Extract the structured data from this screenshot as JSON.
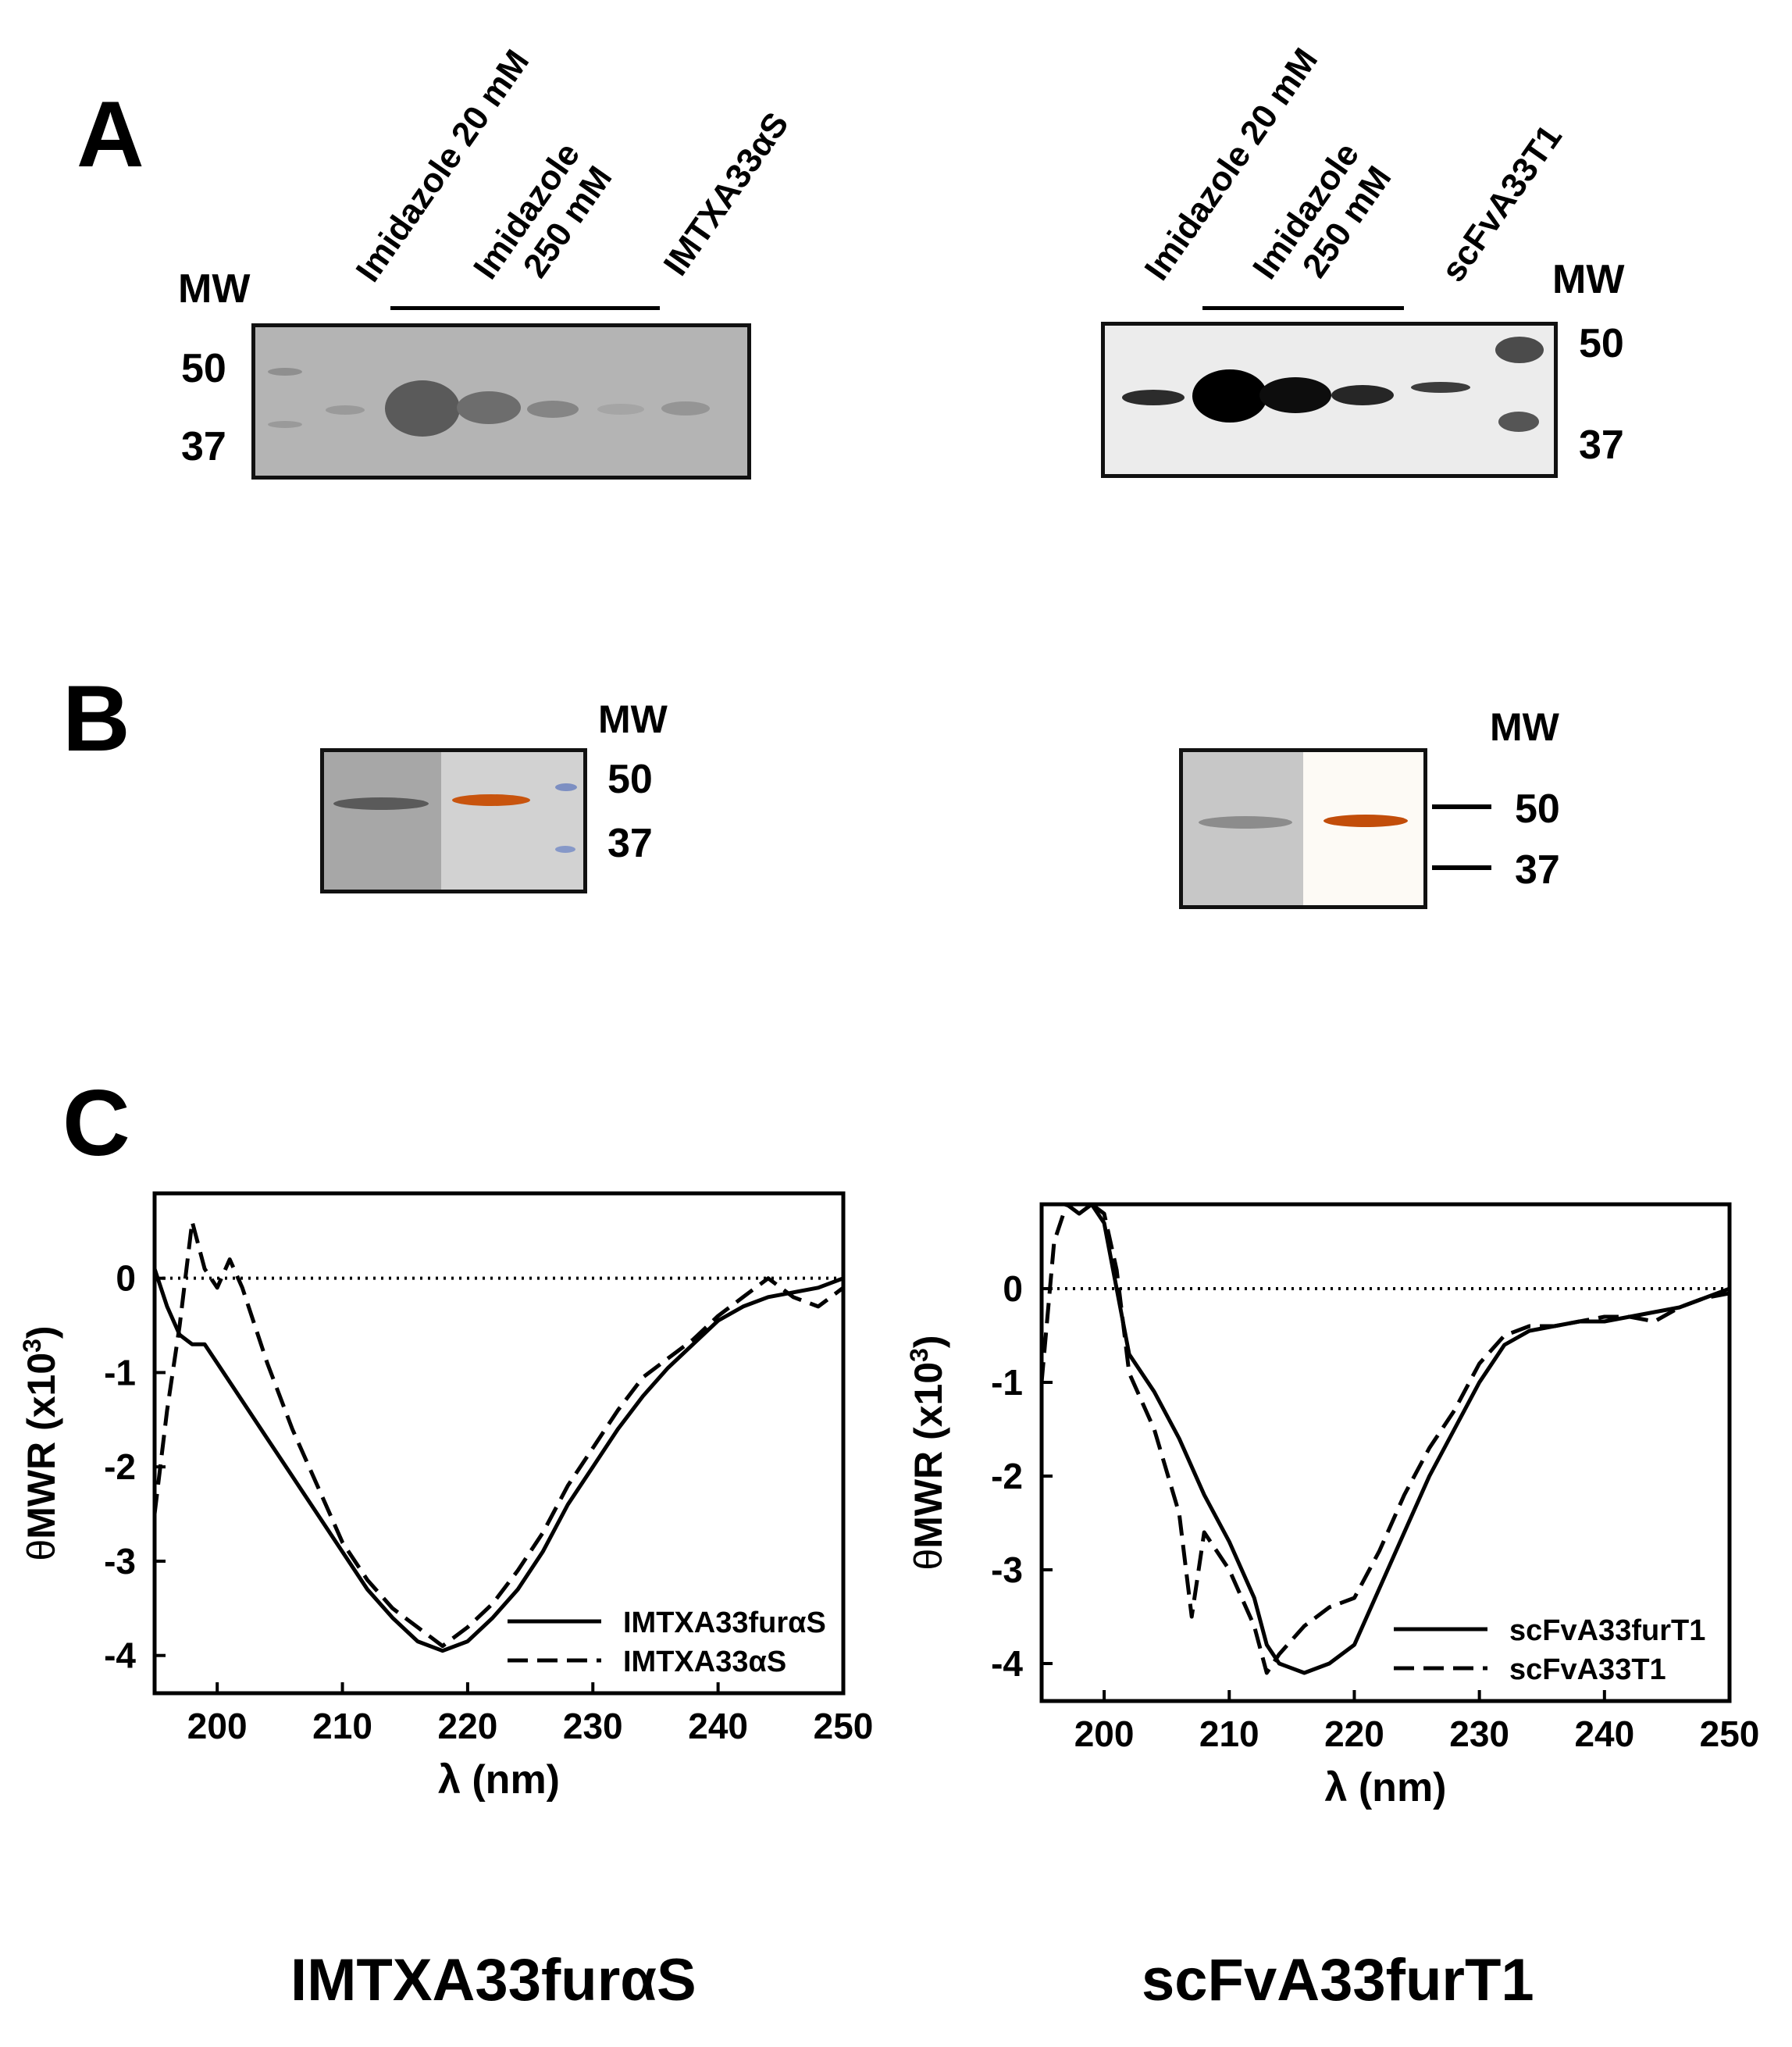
{
  "panel_a": {
    "letter": "A",
    "left_gel": {
      "mw_header": "MW",
      "lane_label_1": "Imidazole 20 mM",
      "lane_label_2_line1": "Imidazole",
      "lane_label_2_line2": "250 mM",
      "lane_label_3": "IMTXA33αS",
      "marker_50": "50",
      "marker_37": "37"
    },
    "right_gel": {
      "mw_header": "MW",
      "lane_label_1": "Imidazole 20 mM",
      "lane_label_2_line1": "Imidazole",
      "lane_label_2_line2": "250 mM",
      "lane_label_3": "scFvA33T1",
      "marker_50": "50",
      "marker_37": "37"
    }
  },
  "panel_b": {
    "letter": "B",
    "left_blot": {
      "mw_header": "MW",
      "marker_50": "50",
      "marker_37": "37"
    },
    "right_blot": {
      "mw_header": "MW",
      "marker_50": "50",
      "marker_37": "37"
    }
  },
  "panel_c": {
    "letter": "C"
  },
  "chart_data": [
    {
      "type": "line",
      "title": "",
      "xlabel": "λ (nm)",
      "ylabel": "θMWR (x10³)",
      "ylabel_main": "θ",
      "ylabel_rest": "MWR (x10",
      "ylabel_exp": "3",
      "ylabel_close": ")",
      "xlim": [
        195,
        250
      ],
      "ylim": [
        -4.4,
        0.9
      ],
      "xticks": [
        200,
        210,
        220,
        230,
        240,
        250
      ],
      "yticks": [
        0,
        -1,
        -2,
        -3,
        -4
      ],
      "xtick_labels": [
        "200",
        "210",
        "220",
        "230",
        "240",
        "250"
      ],
      "ytick_labels": [
        "0",
        "-1",
        "-2",
        "-3",
        "-4"
      ],
      "zero_line": "dotted",
      "legend_position": "bottom-right",
      "series": [
        {
          "name": "IMTXA33furαS",
          "style": "solid",
          "x": [
            195,
            196,
            197,
            198,
            199,
            200,
            202,
            204,
            206,
            208,
            210,
            212,
            214,
            216,
            218,
            220,
            222,
            224,
            226,
            228,
            230,
            232,
            234,
            236,
            238,
            240,
            242,
            244,
            246,
            248,
            250
          ],
          "y": [
            0.1,
            -0.3,
            -0.6,
            -0.7,
            -0.7,
            -0.9,
            -1.3,
            -1.7,
            -2.1,
            -2.5,
            -2.9,
            -3.3,
            -3.6,
            -3.85,
            -3.95,
            -3.85,
            -3.6,
            -3.3,
            -2.9,
            -2.4,
            -2.0,
            -1.6,
            -1.25,
            -0.95,
            -0.7,
            -0.45,
            -0.3,
            -0.2,
            -0.15,
            -0.1,
            0.0
          ]
        },
        {
          "name": "IMTXA33αS",
          "style": "dashed",
          "x": [
            195,
            196,
            197,
            198,
            199,
            200,
            201,
            202,
            204,
            206,
            208,
            210,
            212,
            214,
            216,
            218,
            220,
            222,
            224,
            226,
            228,
            230,
            232,
            234,
            236,
            238,
            240,
            242,
            244,
            246,
            248,
            250
          ],
          "y": [
            -2.5,
            -1.4,
            -0.5,
            0.6,
            0.1,
            -0.1,
            0.2,
            -0.1,
            -0.9,
            -1.6,
            -2.2,
            -2.8,
            -3.2,
            -3.5,
            -3.7,
            -3.9,
            -3.7,
            -3.45,
            -3.1,
            -2.7,
            -2.2,
            -1.8,
            -1.4,
            -1.05,
            -0.85,
            -0.65,
            -0.4,
            -0.2,
            0.0,
            -0.2,
            -0.3,
            -0.1
          ]
        }
      ]
    },
    {
      "type": "line",
      "title": "",
      "xlabel": "λ (nm)",
      "ylabel": "θMWR (x10³)",
      "ylabel_main": "θ",
      "ylabel_rest": "MWR (x10",
      "ylabel_exp": "3",
      "ylabel_close": ")",
      "xlim": [
        195,
        250
      ],
      "ylim": [
        -4.4,
        0.9
      ],
      "xticks": [
        200,
        210,
        220,
        230,
        240,
        250
      ],
      "yticks": [
        0,
        -1,
        -2,
        -3,
        -4
      ],
      "xtick_labels": [
        "200",
        "210",
        "220",
        "230",
        "240",
        "250"
      ],
      "ytick_labels": [
        "0",
        "-1",
        "-2",
        "-3",
        "-4"
      ],
      "zero_line": "dotted",
      "legend_position": "bottom-right",
      "series": [
        {
          "name": "scFvA33furT1",
          "style": "solid",
          "x": [
            196,
            197,
            198,
            199,
            200,
            201,
            202,
            204,
            206,
            208,
            210,
            212,
            213,
            214,
            216,
            218,
            220,
            222,
            224,
            226,
            228,
            230,
            232,
            234,
            236,
            238,
            240,
            242,
            244,
            246,
            248,
            250
          ],
          "y": [
            0.9,
            0.9,
            0.8,
            0.9,
            0.7,
            0.0,
            -0.7,
            -1.1,
            -1.6,
            -2.2,
            -2.7,
            -3.3,
            -3.8,
            -4.0,
            -4.1,
            -4.0,
            -3.8,
            -3.2,
            -2.6,
            -2.0,
            -1.5,
            -1.0,
            -0.6,
            -0.45,
            -0.4,
            -0.35,
            -0.35,
            -0.3,
            -0.25,
            -0.2,
            -0.1,
            0.0
          ]
        },
        {
          "name": "scFvA33T1",
          "style": "dashed",
          "x": [
            195,
            196,
            197,
            198,
            199,
            200,
            201,
            202,
            204,
            206,
            207,
            208,
            210,
            212,
            213,
            214,
            216,
            218,
            220,
            222,
            224,
            226,
            228,
            230,
            232,
            234,
            236,
            238,
            240,
            242,
            244,
            246,
            248,
            250
          ],
          "y": [
            -1.0,
            0.5,
            0.9,
            0.9,
            0.9,
            0.8,
            0.2,
            -0.9,
            -1.5,
            -2.4,
            -3.5,
            -2.6,
            -3.0,
            -3.6,
            -4.1,
            -3.9,
            -3.6,
            -3.4,
            -3.3,
            -2.8,
            -2.2,
            -1.7,
            -1.3,
            -0.8,
            -0.5,
            -0.4,
            -0.4,
            -0.35,
            -0.3,
            -0.3,
            -0.35,
            -0.2,
            -0.1,
            -0.05
          ]
        }
      ]
    }
  ],
  "captions": {
    "left": "IMTXA33furαS",
    "right": "scFvA33furT1"
  }
}
